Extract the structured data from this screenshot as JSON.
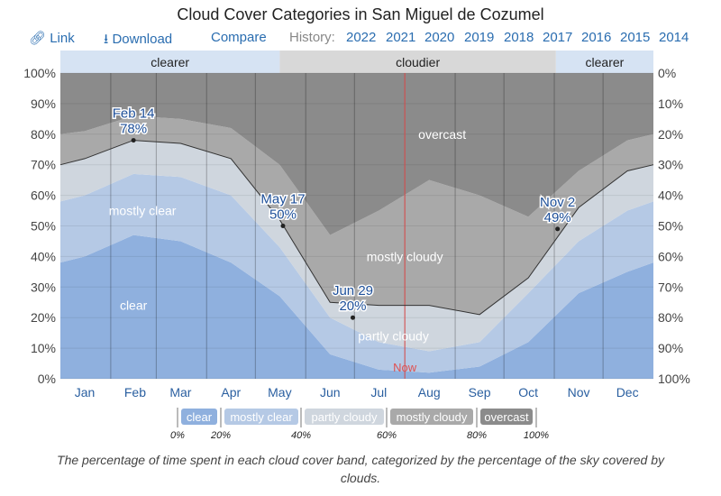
{
  "title": "Cloud Cover Categories in San Miguel de Cozumel",
  "toolbar": {
    "link": "Link",
    "download": "Download",
    "compare": "Compare",
    "history_label": "History:",
    "years": [
      "2022",
      "2021",
      "2020",
      "2019",
      "2018",
      "2017",
      "2016",
      "2015",
      "2014"
    ]
  },
  "caption": "The percentage of time spent in each cloud cover band, categorized by the percentage of the sky covered by clouds.",
  "colors": {
    "clear": "#8fb0de",
    "mostly_clear": "#b5c9e5",
    "partly_cloudy": "#cfd6de",
    "mostly_cloudy": "#a9a9a9",
    "overcast": "#8b8b8b",
    "clearer": "#d6e3f3",
    "cloudier": "#d8d8d8",
    "now": "#e05050",
    "link": "#2a6db0"
  },
  "chart_data": {
    "type": "area",
    "title": "Cloud Cover Categories in San Miguel de Cozumel",
    "x_unit": "day of year",
    "x": [
      0,
      15,
      45,
      74,
      105,
      135,
      166,
      196,
      227,
      258,
      288,
      319,
      349,
      365
    ],
    "cumulative": {
      "clear": [
        38,
        40,
        47,
        45,
        38,
        27,
        8,
        3,
        2,
        4,
        12,
        28,
        35,
        38
      ],
      "clear_or_mostly_clear": [
        58,
        60,
        67,
        66,
        60,
        43,
        20,
        12,
        9,
        12,
        28,
        45,
        55,
        58
      ],
      "clear_mostly_or_partly_clear": [
        70,
        72,
        78,
        77,
        72,
        52,
        25,
        24,
        24,
        21,
        33,
        56,
        68,
        70
      ],
      "not_overcast": [
        80,
        81,
        86,
        85,
        82,
        70,
        47,
        55,
        65,
        60,
        53,
        68,
        78,
        80
      ]
    },
    "series": [
      {
        "name": "clear",
        "label": "clear"
      },
      {
        "name": "mostly_clear",
        "label": "mostly clear"
      },
      {
        "name": "partly_cloudy",
        "label": "partly cloudy"
      },
      {
        "name": "mostly_cloudy",
        "label": "mostly cloudy"
      },
      {
        "name": "overcast",
        "label": "overcast"
      }
    ],
    "months": [
      "Jan",
      "Feb",
      "Mar",
      "Apr",
      "May",
      "Jun",
      "Jul",
      "Aug",
      "Sep",
      "Oct",
      "Nov",
      "Dec"
    ],
    "y_left_ticks": [
      "0%",
      "10%",
      "20%",
      "30%",
      "40%",
      "50%",
      "60%",
      "70%",
      "80%",
      "90%",
      "100%"
    ],
    "y_right_ticks": [
      "100%",
      "90%",
      "80%",
      "70%",
      "60%",
      "50%",
      "40%",
      "30%",
      "20%",
      "10%",
      "0%"
    ],
    "ylim": [
      0,
      100
    ],
    "seasons": [
      {
        "label": "clearer",
        "from": 0,
        "to": 135
      },
      {
        "label": "cloudier",
        "from": 135,
        "to": 305
      },
      {
        "label": "clearer",
        "from": 305,
        "to": 365
      }
    ],
    "annotations": [
      {
        "date": "Feb 14",
        "value_label": "78%",
        "day": 45,
        "value": 78
      },
      {
        "date": "May 17",
        "value_label": "50%",
        "day": 137,
        "value": 50
      },
      {
        "date": "Jun 29",
        "value_label": "20%",
        "day": 180,
        "value": 20
      },
      {
        "date": "Nov 2",
        "value_label": "49%",
        "day": 306,
        "value": 49
      }
    ],
    "now": {
      "label": "Now",
      "day": 212
    },
    "legend": {
      "ticks": [
        "0%",
        "20%",
        "40%",
        "60%",
        "80%",
        "100%"
      ]
    }
  }
}
